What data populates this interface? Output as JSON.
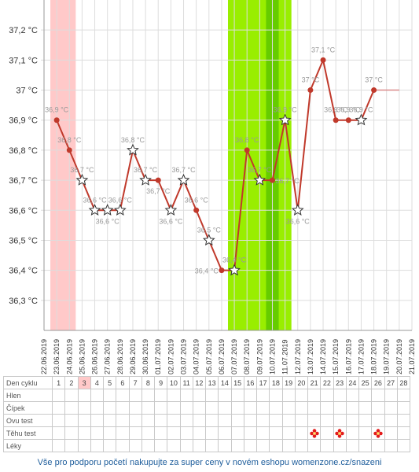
{
  "chart_data": {
    "type": "line",
    "x_dates": [
      "22.06.2019",
      "23.06.2019",
      "24.06.2019",
      "25.06.2019",
      "26.06.2019",
      "27.06.2019",
      "28.06.2019",
      "29.06.2019",
      "30.06.2019",
      "01.07.2019",
      "02.07.2019",
      "03.07.2019",
      "04.07.2019",
      "05.07.2019",
      "06.07.2019",
      "07.07.2019",
      "08.07.2019",
      "09.07.2019",
      "10.07.2019",
      "11.07.2019",
      "12.07.2019",
      "13.07.2019",
      "14.07.2019",
      "15.07.2019",
      "16.07.2019",
      "17.07.2019",
      "18.07.2019",
      "19.07.2019",
      "20.07.2019",
      "21.07.2019"
    ],
    "y_ticks": [
      36.3,
      36.4,
      36.5,
      36.6,
      36.7,
      36.8,
      36.9,
      37.0,
      37.1,
      37.2
    ],
    "y_tick_labels": [
      "36,3 °C",
      "36,4 °C",
      "36,5 °C",
      "36,6 °C",
      "36,7 °C",
      "36,8 °C",
      "36,9 °C",
      "37 °C",
      "37,1 °C",
      "37,2 °C"
    ],
    "ylim": [
      36.2,
      37.3
    ],
    "grid": true,
    "series_color": "#c0392b",
    "points": [
      {
        "date": "23.06.2019",
        "value": 36.9,
        "label": "36,9 °C",
        "marker": "dot",
        "label_side": "above"
      },
      {
        "date": "24.06.2019",
        "value": 36.8,
        "label": "36,8 °C",
        "marker": "dot",
        "label_side": "above"
      },
      {
        "date": "25.06.2019",
        "value": 36.7,
        "label": "36,7 °C",
        "marker": "star",
        "label_side": "above"
      },
      {
        "date": "26.06.2019",
        "value": 36.6,
        "label": "36,6 °C",
        "marker": "star",
        "label_side": "above"
      },
      {
        "date": "27.06.2019",
        "value": 36.6,
        "label": "36,6 °C",
        "marker": "star",
        "label_side": "below"
      },
      {
        "date": "28.06.2019",
        "value": 36.6,
        "label": "36,6 °C",
        "marker": "star",
        "label_side": "above"
      },
      {
        "date": "29.06.2019",
        "value": 36.8,
        "label": "36,8 °C",
        "marker": "star",
        "label_side": "above"
      },
      {
        "date": "30.06.2019",
        "value": 36.7,
        "label": "36,7 °C",
        "marker": "star",
        "label_side": "above"
      },
      {
        "date": "01.07.2019",
        "value": 36.7,
        "label": "36,7 °C",
        "marker": "dot",
        "label_side": "below"
      },
      {
        "date": "02.07.2019",
        "value": 36.6,
        "label": "36,6 °C",
        "marker": "star",
        "label_side": "below"
      },
      {
        "date": "03.07.2019",
        "value": 36.7,
        "label": "36,7 °C",
        "marker": "star",
        "label_side": "above"
      },
      {
        "date": "04.07.2019",
        "value": 36.6,
        "label": "36,6 °C",
        "marker": "dot",
        "label_side": "above"
      },
      {
        "date": "05.07.2019",
        "value": 36.5,
        "label": "36,5 °C",
        "marker": "star",
        "label_side": "above"
      },
      {
        "date": "06.07.2019",
        "value": 36.4,
        "label": "36,4 °C",
        "marker": "dot",
        "label_side": "left"
      },
      {
        "date": "07.07.2019",
        "value": 36.4,
        "label": "36,4 °C",
        "marker": "star",
        "label_side": "above"
      },
      {
        "date": "08.07.2019",
        "value": 36.8,
        "label": "36,8 °C",
        "marker": "dot",
        "label_side": "above"
      },
      {
        "date": "09.07.2019",
        "value": 36.7,
        "label": "36,7 °C",
        "marker": "star",
        "label_side": "above"
      },
      {
        "date": "10.07.2019",
        "value": 36.7,
        "label": "36,7 °C",
        "marker": "dot",
        "label_side": "right"
      },
      {
        "date": "11.07.2019",
        "value": 36.9,
        "label": "36,9 °C",
        "marker": "star",
        "label_side": "above"
      },
      {
        "date": "12.07.2019",
        "value": 36.6,
        "label": "36,6 °C",
        "marker": "star",
        "label_side": "below"
      },
      {
        "date": "13.07.2019",
        "value": 37.0,
        "label": "37 °C",
        "marker": "dot",
        "label_side": "above"
      },
      {
        "date": "14.07.2019",
        "value": 37.1,
        "label": "37,1 °C",
        "marker": "dot",
        "label_side": "above"
      },
      {
        "date": "15.07.2019",
        "value": 36.9,
        "label": "36,9 °C",
        "marker": "dot",
        "label_side": "above"
      },
      {
        "date": "16.07.2019",
        "value": 36.9,
        "label": "36,9 °C",
        "marker": "dot",
        "label_side": "above"
      },
      {
        "date": "17.07.2019",
        "value": 36.9,
        "label": "36,9 °C",
        "marker": "star",
        "label_side": "above"
      },
      {
        "date": "18.07.2019",
        "value": 37.0,
        "label": "37 °C",
        "marker": "dot",
        "label_side": "above"
      }
    ],
    "coverline": {
      "from": "18.07.2019",
      "to": "20.07.2019",
      "value": 37.0,
      "color": "#d98a8a"
    },
    "bands": [
      {
        "from": "23.06.2019",
        "to": "24.06.2019",
        "color": "#ffc9c9",
        "meaning": "menstruation"
      },
      {
        "from": "07.07.2019",
        "to": "11.07.2019",
        "color": "#99ee00",
        "meaning": "fertile window"
      },
      {
        "from": "10.07.2019",
        "to": "10.07.2019",
        "color": "#66cc00",
        "meaning": "peak"
      }
    ]
  },
  "cycle_table": {
    "header_label": "Den cyklu",
    "days": [
      "1",
      "2",
      "3",
      "4",
      "5",
      "6",
      "7",
      "8",
      "9",
      "10",
      "11",
      "12",
      "13",
      "14",
      "15",
      "16",
      "17",
      "18",
      "19",
      "20",
      "21",
      "22",
      "23",
      "24",
      "25",
      "26",
      "27",
      "28"
    ],
    "highlighted_day": "3",
    "rows": [
      "Hlen",
      "Čípek",
      "Ovu test",
      "Těhu test",
      "Léky"
    ],
    "pregnancy_test_icon": "flower-icon",
    "pregnancy_test_days": [
      "21",
      "23",
      "26"
    ]
  },
  "footer": {
    "text": "Vše pro podporu početí nakupujte za super ceny v novém eshopu womenzone.cz/snazeni"
  }
}
